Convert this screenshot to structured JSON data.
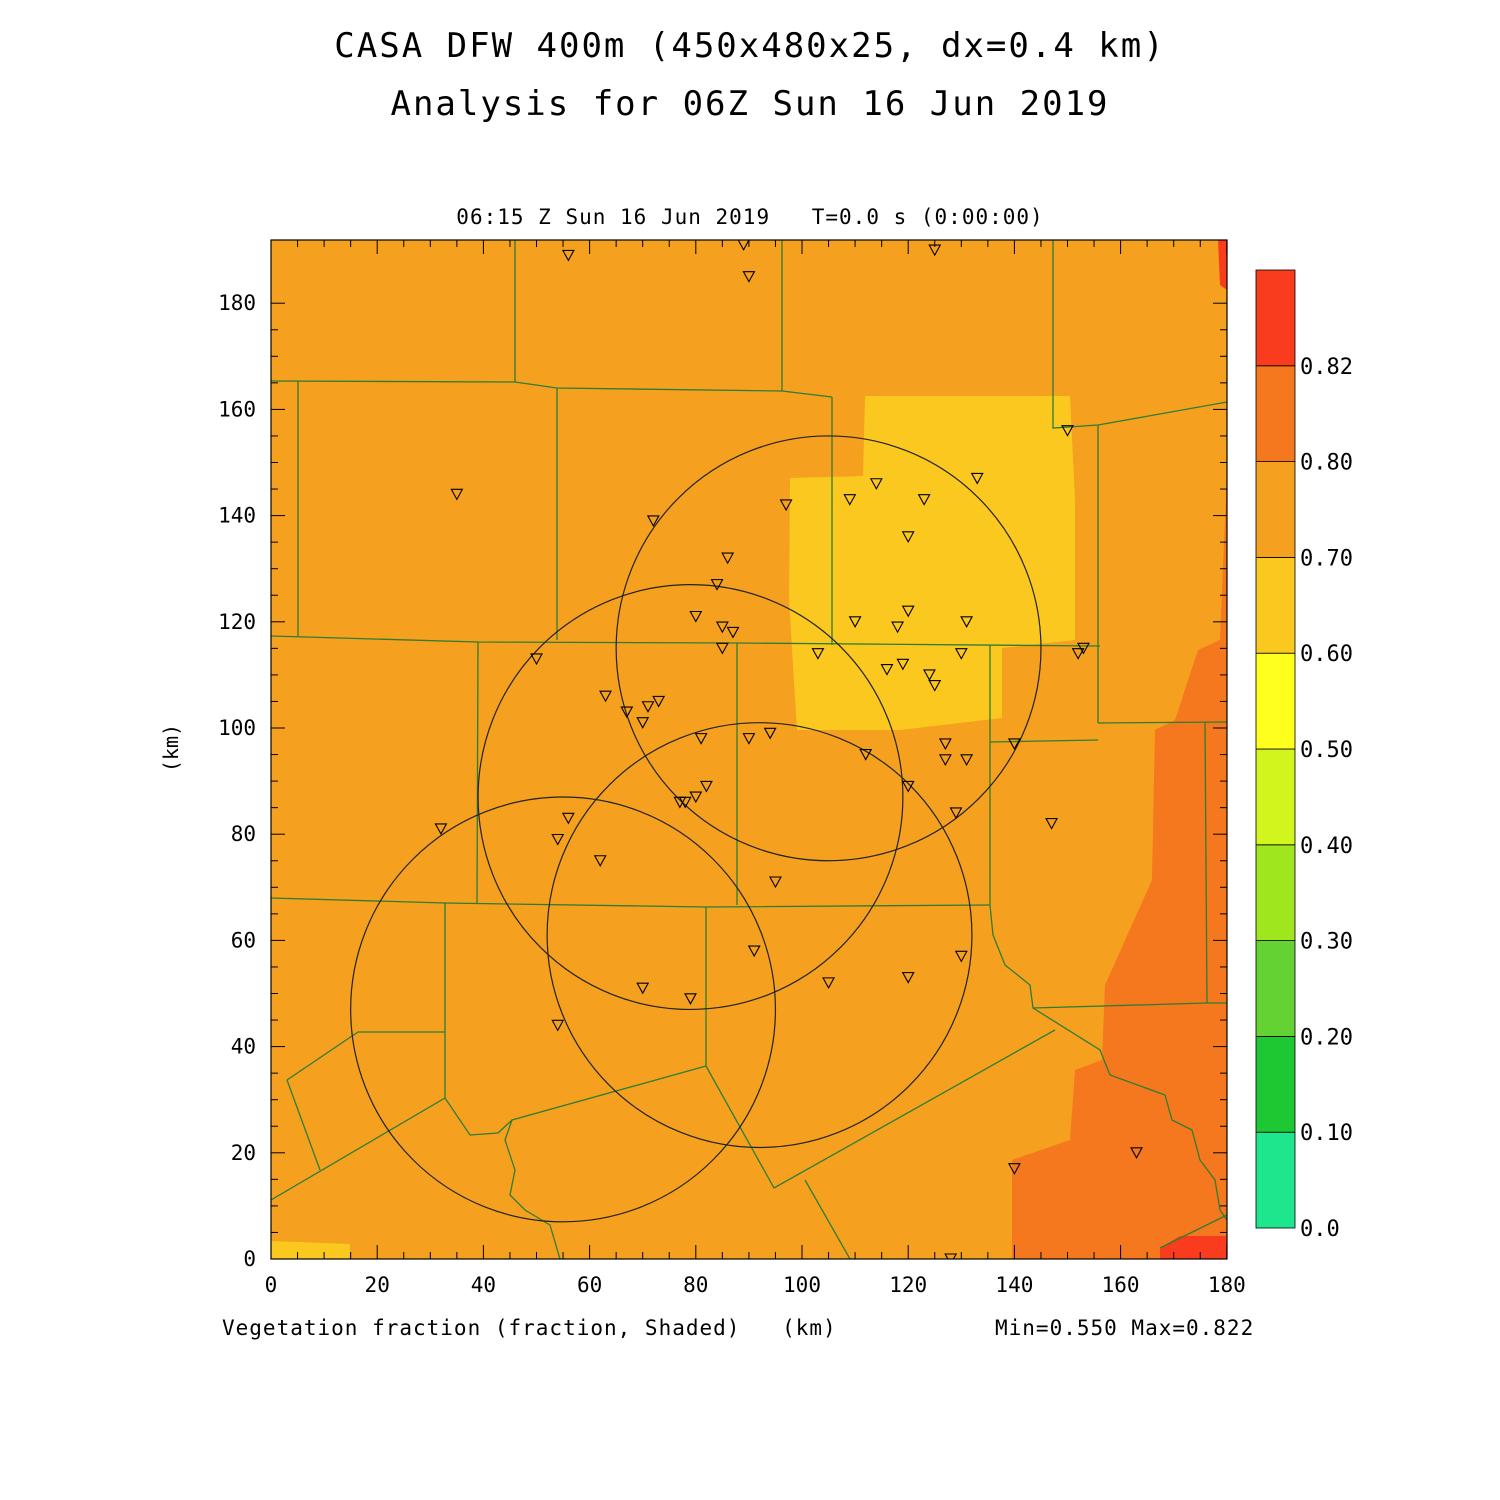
{
  "title_line1": "CASA DFW 400m (450x480x25, dx=0.4 km)",
  "title_line2": "Analysis for 06Z Sun 16 Jun 2019",
  "subtitle_time": "06:15 Z Sun 16 Jun 2019",
  "subtitle_t": "T=0.0 s (0:00:00)",
  "y_axis_label": "(km)",
  "x_axis_label": "(km)",
  "field_label": "Vegetation fraction (fraction, Shaded)",
  "minmax": "Min=0.550 Max=0.822",
  "x_ticks": [
    "0",
    "20",
    "40",
    "60",
    "80",
    "100",
    "120",
    "140",
    "160",
    "180"
  ],
  "y_ticks": [
    "0",
    "20",
    "40",
    "60",
    "80",
    "100",
    "120",
    "140",
    "160",
    "180"
  ],
  "colorbar": {
    "labels": [
      "0.0",
      "0.10",
      "0.20",
      "0.30",
      "0.40",
      "0.50",
      "0.60",
      "0.70",
      "0.80",
      "0.82"
    ],
    "colors": [
      "#1ee68c",
      "#1ec832",
      "#64d232",
      "#a0e61e",
      "#d2f51e",
      "#ffff1e",
      "#fac81e",
      "#f5a01e",
      "#f5781e",
      "#fa3c1e"
    ]
  },
  "colors": {
    "background_fill": "#f5a01e",
    "low_fill": "#fac81e",
    "high_fill": "#f5781e",
    "max_fill": "#fa3c1e",
    "county_lines": "#2e7d32",
    "rings": "#222222"
  },
  "radar_rings_km": [
    {
      "cx": 105,
      "cy": 115,
      "r": 40
    },
    {
      "cx": 79,
      "cy": 87,
      "r": 40
    },
    {
      "cx": 92,
      "cy": 61,
      "r": 40
    },
    {
      "cx": 55,
      "cy": 47,
      "r": 40
    }
  ],
  "stations_km": [
    [
      56,
      189
    ],
    [
      89,
      191
    ],
    [
      90,
      185
    ],
    [
      125,
      190
    ],
    [
      35,
      144
    ],
    [
      72,
      139
    ],
    [
      97,
      142
    ],
    [
      109,
      143
    ],
    [
      114,
      146
    ],
    [
      123,
      143
    ],
    [
      133,
      147
    ],
    [
      150,
      156
    ],
    [
      86,
      132
    ],
    [
      120,
      136
    ],
    [
      84,
      127
    ],
    [
      80,
      121
    ],
    [
      85,
      119
    ],
    [
      87,
      118
    ],
    [
      110,
      120
    ],
    [
      118,
      119
    ],
    [
      120,
      122
    ],
    [
      131,
      120
    ],
    [
      85,
      115
    ],
    [
      103,
      114
    ],
    [
      50,
      113
    ],
    [
      116,
      111
    ],
    [
      119,
      112
    ],
    [
      124,
      110
    ],
    [
      125,
      108
    ],
    [
      130,
      114
    ],
    [
      152,
      114
    ],
    [
      153,
      115
    ],
    [
      63,
      106
    ],
    [
      67,
      103
    ],
    [
      70,
      101
    ],
    [
      71,
      104
    ],
    [
      73,
      105
    ],
    [
      81,
      98
    ],
    [
      90,
      98
    ],
    [
      94,
      99
    ],
    [
      112,
      95
    ],
    [
      127,
      97
    ],
    [
      127,
      94
    ],
    [
      131,
      94
    ],
    [
      140,
      97
    ],
    [
      82,
      89
    ],
    [
      78,
      86
    ],
    [
      77,
      86
    ],
    [
      80,
      87
    ],
    [
      120,
      89
    ],
    [
      129,
      84
    ],
    [
      147,
      82
    ],
    [
      32,
      81
    ],
    [
      56,
      83
    ],
    [
      54,
      79
    ],
    [
      62,
      75
    ],
    [
      95,
      71
    ],
    [
      91,
      58
    ],
    [
      130,
      57
    ],
    [
      70,
      51
    ],
    [
      79,
      49
    ],
    [
      105,
      52
    ],
    [
      120,
      53
    ],
    [
      54,
      44
    ],
    [
      140,
      17
    ],
    [
      163,
      20
    ],
    [
      128,
      0
    ]
  ]
}
